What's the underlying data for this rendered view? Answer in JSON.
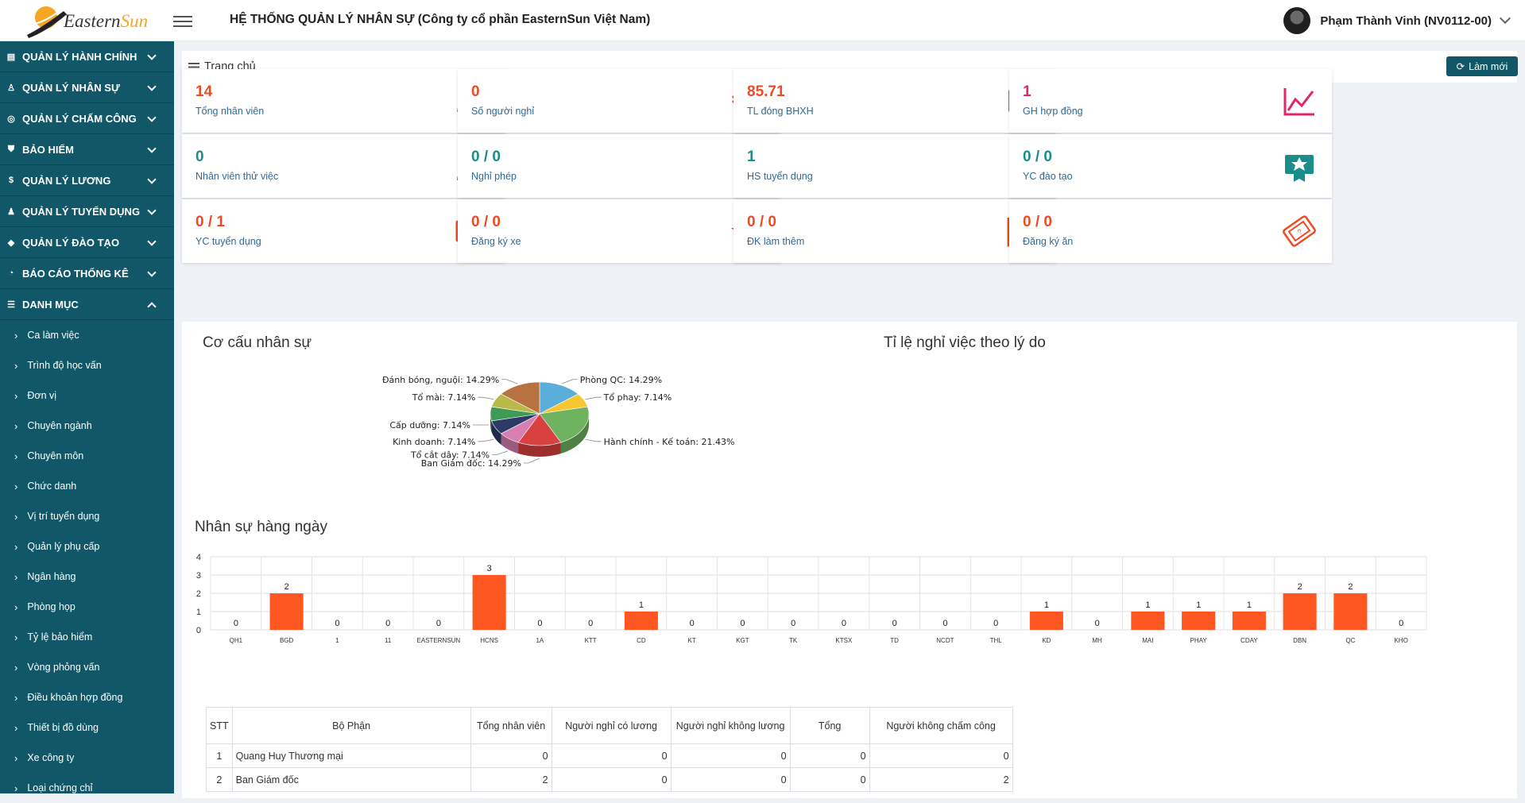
{
  "header": {
    "brand_prefix": "Eastern",
    "brand_suffix": "Sun",
    "title": "HỆ THỐNG QUẢN LÝ NHÂN SỰ (Công ty cổ phần EasternSun Việt Nam)",
    "user_name": "Phạm Thành Vinh (NV0112-00)"
  },
  "sidebar": {
    "menus": [
      {
        "label": "QUẢN LÝ HÀNH CHÍNH",
        "icon": "id-card-icon",
        "glyph": "▤"
      },
      {
        "label": "QUẢN LÝ NHÂN SỰ",
        "icon": "user-icon",
        "glyph": "♙"
      },
      {
        "label": "QUẢN LÝ CHẤM CÔNG",
        "icon": "compass-icon",
        "glyph": "◎"
      },
      {
        "label": "BẢO HIỂM",
        "icon": "shield-icon",
        "glyph": "⛊"
      },
      {
        "label": "QUẢN LÝ LƯƠNG",
        "icon": "money-icon",
        "glyph": "$"
      },
      {
        "label": "QUẢN LÝ TUYỂN DỤNG",
        "icon": "users-icon",
        "glyph": "♟"
      },
      {
        "label": "QUẢN LÝ ĐÀO TẠO",
        "icon": "graduation-cap-icon",
        "glyph": "◆"
      },
      {
        "label": "BÁO CÁO THỐNG KÊ",
        "icon": "pie-chart-icon",
        "glyph": "◔"
      },
      {
        "label": "DANH MỤC",
        "icon": "list-icon",
        "glyph": "☰"
      }
    ],
    "sub_items": [
      "Ca làm việc",
      "Trình độ học vấn",
      "Đơn vị",
      "Chuyên ngành",
      "Chuyên môn",
      "Chức danh",
      "Vị trí tuyển dụng",
      "Quản lý phụ cấp",
      "Ngân hàng",
      "Phòng họp",
      "Tỷ lệ bảo hiểm",
      "Vòng phỏng vấn",
      "Điều khoản hợp đồng",
      "Thiết bị đồ dùng",
      "Xe công ty",
      "Loại chứng chỉ"
    ]
  },
  "breadcrumb": "Trang chủ",
  "refresh_label": "Làm mới",
  "cards": [
    {
      "value": "14",
      "label": "Tổng nhân viên",
      "icon": "users-icon",
      "color": "#ee4b23"
    },
    {
      "value": "0",
      "label": "Số người nghỉ",
      "icon": "user-times-icon",
      "color": "#ee4b23"
    },
    {
      "value": "85.71",
      "label": "TL đóng BHXH",
      "icon": "id-card-icon",
      "color": "#ee4b23"
    },
    {
      "value": "1",
      "label": "GH hợp đồng",
      "icon": "line-chart-icon",
      "color": "#e2266a"
    },
    {
      "value": "0",
      "label": "Nhân viên thử việc",
      "icon": "user-plus-icon",
      "color": "#1a8c8a"
    },
    {
      "value": "0 / 0",
      "label": "Nghỉ phép",
      "icon": "user-exclamation-icon",
      "color": "#1a8c8a"
    },
    {
      "value": "1",
      "label": "HS tuyển dụng",
      "icon": "clipboard-icon",
      "color": "#1a8c8a"
    },
    {
      "value": "0 / 0",
      "label": "YC đào tạo",
      "icon": "certificate-icon",
      "color": "#1a8c8a"
    },
    {
      "value": "0 / 1",
      "label": "YC tuyển dụng",
      "icon": "money-bill-icon",
      "color": "#ee4b23"
    },
    {
      "value": "0 / 0",
      "label": "Đăng ký xe",
      "icon": "user-star-icon",
      "color": "#ee4b23"
    },
    {
      "value": "0 / 0",
      "label": "ĐK làm thêm",
      "icon": "bar-chart-icon",
      "color": "#ee4b23"
    },
    {
      "value": "0 / 0",
      "label": "Đăng ký ăn",
      "icon": "ticket-icon",
      "color": "#ee4b23"
    }
  ],
  "pie_title": "Cơ cấu nhân sự",
  "reason_title": "Tỉ lệ nghỉ việc theo lý do",
  "bar_title": "Nhân sự hàng ngày",
  "chart_data": [
    {
      "type": "pie",
      "title": "Cơ cấu nhân sự",
      "slices": [
        {
          "label": "Phòng QC",
          "value": 14.29,
          "color": "#5aaedc"
        },
        {
          "label": "Tổ phay",
          "value": 7.14,
          "color": "#f8c631"
        },
        {
          "label": "Hành chính - Kế toán",
          "value": 21.43,
          "color": "#6fb25f"
        },
        {
          "label": "Ban Giám đốc",
          "value": 14.29,
          "color": "#d94040"
        },
        {
          "label": "Tổ cắt dây",
          "value": 7.14,
          "color": "#d77fb0"
        },
        {
          "label": "Kinh doanh",
          "value": 7.14,
          "color": "#2c3a66"
        },
        {
          "label": "Cấp dưỡng",
          "value": 7.14,
          "color": "#3f9a55"
        },
        {
          "label": "Tổ mài",
          "value": 7.14,
          "color": "#b9b948"
        },
        {
          "label": "Đánh bóng, nguội",
          "value": 14.29,
          "color": "#b87242"
        }
      ]
    },
    {
      "type": "bar",
      "title": "Nhân sự hàng ngày",
      "categories": [
        "QH1",
        "BGD",
        "1",
        "11",
        "EASTERNSUN",
        "HCNS",
        "1A",
        "KTT",
        "CD",
        "KT",
        "KGT",
        "TK",
        "KTSX",
        "TD",
        "NCDT",
        "THL",
        "KD",
        "MH",
        "MAI",
        "PHAY",
        "CDAY",
        "DBN",
        "QC",
        "KHO"
      ],
      "values": [
        0,
        2,
        0,
        0,
        0,
        3,
        0,
        0,
        1,
        0,
        0,
        0,
        0,
        0,
        0,
        0,
        1,
        0,
        1,
        1,
        1,
        2,
        2,
        0
      ],
      "ylim": [
        0,
        4
      ],
      "yticks": [
        "0",
        "1",
        "2",
        "3",
        "4"
      ],
      "color": "#fe5722"
    }
  ],
  "table": {
    "headers": [
      "STT",
      "Bộ Phận",
      "Tổng nhân viên",
      "Người nghỉ có lương",
      "Người nghỉ không lương",
      "Tổng",
      "Người không chấm công"
    ],
    "rows": [
      [
        "1",
        "Quang Huy Thương mại",
        "0",
        "0",
        "0",
        "0",
        "0"
      ],
      [
        "2",
        "Ban Giám đốc",
        "2",
        "0",
        "0",
        "0",
        "2"
      ]
    ]
  }
}
